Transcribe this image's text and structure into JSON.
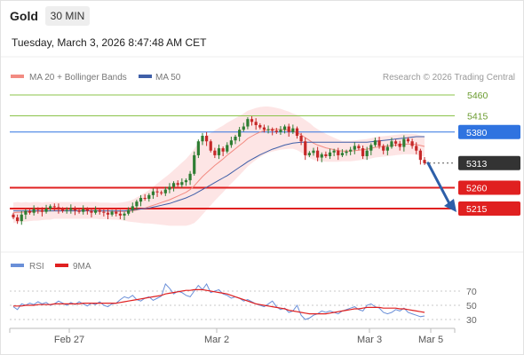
{
  "header": {
    "title": "Gold",
    "timeframe": "30 MIN",
    "datetime": "Tuesday, March 3, 2026 8:47:48 AM CET"
  },
  "legend": {
    "ma20_label": "MA 20 + Bollinger Bands",
    "ma50_label": "MA 50",
    "credit": "Research © 2026 Trading Central",
    "rsi_label": "RSI",
    "rsi_ma_label": "9MA"
  },
  "colors": {
    "resistance": "#8bc34a",
    "pivot": "#2f73e0",
    "support": "#e02020",
    "last": "#333333",
    "ma20": "#f28b82",
    "ma50": "#3f5fa8",
    "band_fill": "#fde1e1",
    "candle_up": "#2e7d32",
    "candle_down": "#c62828",
    "rsi": "#6a8fd8",
    "rsi_ma": "#e02020",
    "arrow": "#2d5fa8"
  },
  "chart_data": {
    "type": "candlestick",
    "instrument": "Gold",
    "timeframe": "30 MIN",
    "x_ticks": [
      "Feb 27",
      "Mar 2",
      "Mar 3",
      "Mar 5"
    ],
    "levels": [
      {
        "value": 5460,
        "kind": "resistance",
        "label": "5460"
      },
      {
        "value": 5415,
        "kind": "resistance",
        "label": "5415"
      },
      {
        "value": 5380,
        "kind": "pivot",
        "label": "5380"
      },
      {
        "value": 5313,
        "kind": "last",
        "label": "5313"
      },
      {
        "value": 5260,
        "kind": "support",
        "label": "5260"
      },
      {
        "value": 5215,
        "kind": "support",
        "label": "5215"
      }
    ],
    "close_series": [
      5196,
      5188,
      5202,
      5210,
      5206,
      5214,
      5212,
      5208,
      5215,
      5220,
      5218,
      5214,
      5210,
      5212,
      5216,
      5211,
      5208,
      5214,
      5210,
      5206,
      5212,
      5208,
      5206,
      5202,
      5208,
      5204,
      5200,
      5204,
      5212,
      5220,
      5230,
      5238,
      5236,
      5244,
      5252,
      5250,
      5248,
      5256,
      5262,
      5270,
      5266,
      5272,
      5276,
      5290,
      5330,
      5360,
      5372,
      5360,
      5340,
      5330,
      5345,
      5338,
      5352,
      5362,
      5370,
      5385,
      5392,
      5408,
      5402,
      5395,
      5390,
      5385,
      5386,
      5383,
      5380,
      5385,
      5392,
      5380,
      5388,
      5372,
      5360,
      5330,
      5335,
      5340,
      5325,
      5332,
      5328,
      5336,
      5340,
      5330,
      5335,
      5338,
      5342,
      5350,
      5345,
      5328,
      5340,
      5352,
      5362,
      5350,
      5340,
      5348,
      5360,
      5355,
      5348,
      5365,
      5360,
      5350,
      5340,
      5320,
      5313
    ],
    "ma20_series": [
      5206,
      5207,
      5207,
      5208,
      5208,
      5209,
      5209,
      5209,
      5210,
      5210,
      5211,
      5211,
      5211,
      5211,
      5211,
      5211,
      5211,
      5211,
      5211,
      5211,
      5211,
      5210,
      5210,
      5210,
      5209,
      5209,
      5209,
      5209,
      5209,
      5210,
      5212,
      5214,
      5216,
      5219,
      5222,
      5225,
      5228,
      5231,
      5234,
      5238,
      5242,
      5246,
      5250,
      5256,
      5264,
      5274,
      5284,
      5292,
      5300,
      5308,
      5315,
      5322,
      5330,
      5337,
      5344,
      5351,
      5358,
      5366,
      5371,
      5376,
      5380,
      5383,
      5385,
      5386,
      5386,
      5386,
      5385,
      5384,
      5382,
      5379,
      5374,
      5368,
      5362,
      5356,
      5352,
      5349,
      5346,
      5344,
      5342,
      5340,
      5339,
      5339,
      5339,
      5340,
      5341,
      5342,
      5343,
      5345,
      5347,
      5348,
      5349,
      5350,
      5351,
      5352,
      5353,
      5354,
      5354,
      5354,
      5353,
      5351,
      5349
    ],
    "ma50_series": [
      5210,
      5210,
      5210,
      5210,
      5210,
      5210,
      5210,
      5210,
      5210,
      5210,
      5210,
      5210,
      5210,
      5210,
      5210,
      5210,
      5210,
      5210,
      5210,
      5210,
      5210,
      5210,
      5210,
      5210,
      5210,
      5210,
      5210,
      5210,
      5211,
      5212,
      5213,
      5214,
      5215,
      5216,
      5218,
      5220,
      5222,
      5224,
      5226,
      5229,
      5232,
      5235,
      5238,
      5242,
      5246,
      5251,
      5256,
      5261,
      5266,
      5271,
      5276,
      5281,
      5286,
      5292,
      5298,
      5304,
      5310,
      5316,
      5321,
      5326,
      5331,
      5335,
      5339,
      5343,
      5346,
      5349,
      5352,
      5354,
      5356,
      5357,
      5358,
      5358,
      5358,
      5358,
      5358,
      5358,
      5358,
      5358,
      5358,
      5358,
      5358,
      5358,
      5358,
      5358,
      5358,
      5358,
      5358,
      5359,
      5360,
      5361,
      5362,
      5363,
      5364,
      5365,
      5366,
      5367,
      5368,
      5369,
      5370,
      5370,
      5370
    ],
    "bollinger_width": [
      22,
      22,
      21,
      21,
      20,
      20,
      20,
      19,
      19,
      19,
      18,
      18,
      18,
      18,
      18,
      18,
      18,
      18,
      18,
      18,
      18,
      18,
      18,
      18,
      18,
      18,
      19,
      20,
      22,
      24,
      27,
      30,
      33,
      36,
      40,
      44,
      48,
      52,
      56,
      60,
      64,
      68,
      72,
      76,
      80,
      82,
      82,
      80,
      78,
      76,
      74,
      72,
      70,
      68,
      66,
      64,
      62,
      60,
      58,
      56,
      54,
      52,
      50,
      48,
      46,
      44,
      42,
      40,
      38,
      38,
      38,
      38,
      38,
      36,
      34,
      32,
      30,
      28,
      26,
      24,
      22,
      22,
      22,
      22,
      22,
      22,
      22,
      22,
      22,
      22,
      22,
      22,
      22,
      22,
      22,
      22,
      22,
      22,
      22,
      22,
      22
    ],
    "rsi": {
      "ticks": [
        70,
        50,
        30
      ],
      "rsi_series": [
        48,
        44,
        52,
        50,
        53,
        51,
        55,
        52,
        54,
        50,
        52,
        56,
        53,
        50,
        54,
        51,
        55,
        52,
        49,
        53,
        51,
        55,
        50,
        48,
        52,
        53,
        58,
        62,
        60,
        64,
        58,
        56,
        60,
        62,
        57,
        60,
        63,
        80,
        74,
        66,
        70,
        68,
        64,
        62,
        70,
        78,
        72,
        80,
        68,
        70,
        72,
        66,
        64,
        60,
        62,
        60,
        56,
        58,
        55,
        52,
        50,
        48,
        52,
        56,
        48,
        44,
        46,
        40,
        42,
        50,
        36,
        30,
        32,
        36,
        38,
        42,
        40,
        42,
        40,
        38,
        42,
        44,
        46,
        48,
        44,
        42,
        50,
        52,
        48,
        46,
        40,
        38,
        40,
        44,
        42,
        46,
        40,
        38,
        36,
        34,
        35
      ],
      "ma_series": [
        49,
        49,
        49,
        50,
        50,
        50,
        51,
        51,
        51,
        51,
        52,
        52,
        52,
        52,
        52,
        52,
        52,
        53,
        53,
        53,
        53,
        53,
        53,
        53,
        53,
        53,
        54,
        55,
        56,
        57,
        58,
        59,
        60,
        61,
        62,
        63,
        64,
        66,
        67,
        68,
        69,
        70,
        71,
        71,
        72,
        72,
        72,
        71,
        70,
        69,
        68,
        67,
        66,
        64,
        62,
        60,
        58,
        56,
        54,
        52,
        51,
        50,
        49,
        48,
        47,
        46,
        45,
        43,
        42,
        41,
        40,
        39,
        38,
        38,
        38,
        38,
        38,
        39,
        40,
        41,
        42,
        43,
        44,
        45,
        45,
        46,
        47,
        47,
        47,
        47,
        46,
        46,
        46,
        46,
        45,
        45,
        44,
        43,
        42,
        41,
        40
      ]
    }
  }
}
